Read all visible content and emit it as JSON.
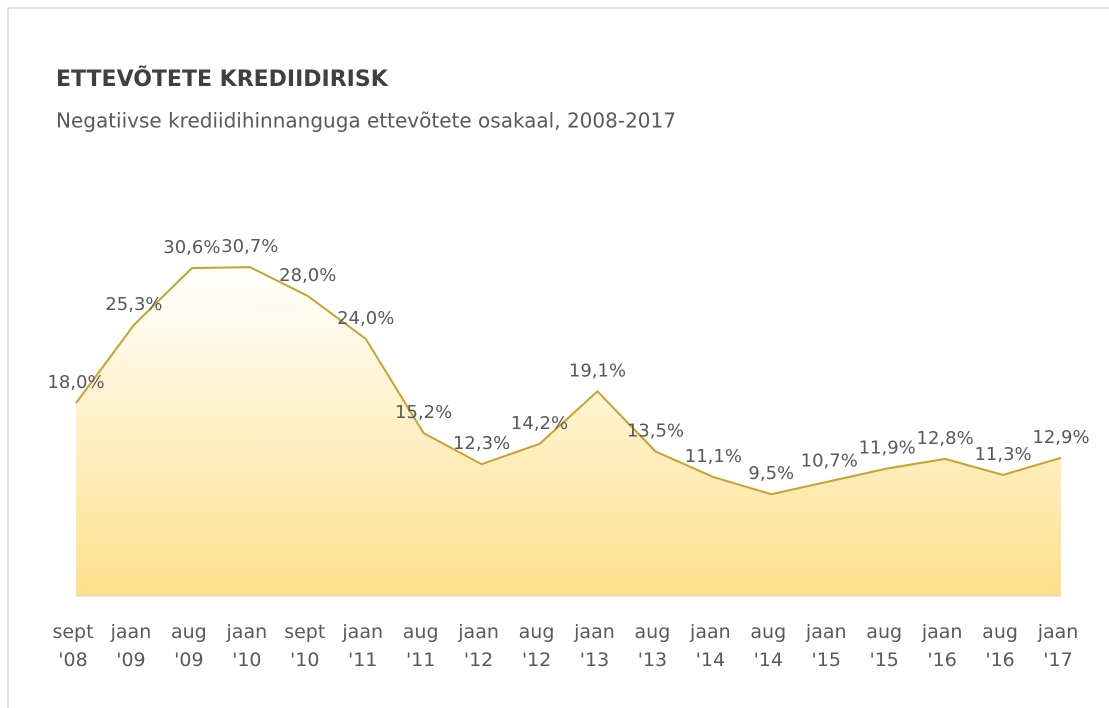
{
  "chart_data": {
    "type": "area",
    "title": "ETTEVÕTETE KREDIIDIRISK",
    "subtitle": "Negatiivse krediidihinnanguga ettevõtete osakaal, 2008-2017",
    "categories": [
      "sept '08",
      "jaan '09",
      "aug '09",
      "jaan '10",
      "sept '10",
      "jaan '11",
      "aug '11",
      "jaan '12",
      "aug '12",
      "jaan '13",
      "aug '13",
      "jaan '14",
      "aug '14",
      "jaan '15",
      "aug '15",
      "jaan '16",
      "aug '16",
      "jaan '17"
    ],
    "values": [
      18.0,
      25.3,
      30.6,
      30.7,
      28.0,
      24.0,
      15.2,
      12.3,
      14.2,
      19.1,
      13.5,
      11.1,
      9.5,
      10.7,
      11.9,
      12.8,
      11.3,
      12.9
    ],
    "value_labels": [
      "18,0%",
      "25,3%",
      "30,6%",
      "30,7%",
      "28,0%",
      "24,0%",
      "15,2%",
      "12,3%",
      "14,2%",
      "19,1%",
      "13,5%",
      "11,1%",
      "9,5%",
      "10,7%",
      "11,9%",
      "12,8%",
      "11,3%",
      "12,9%"
    ],
    "color": "#c9a22e",
    "fill_top": "#ffffff",
    "fill_bottom": "#ffe08c",
    "ylim": [
      0,
      35
    ]
  }
}
